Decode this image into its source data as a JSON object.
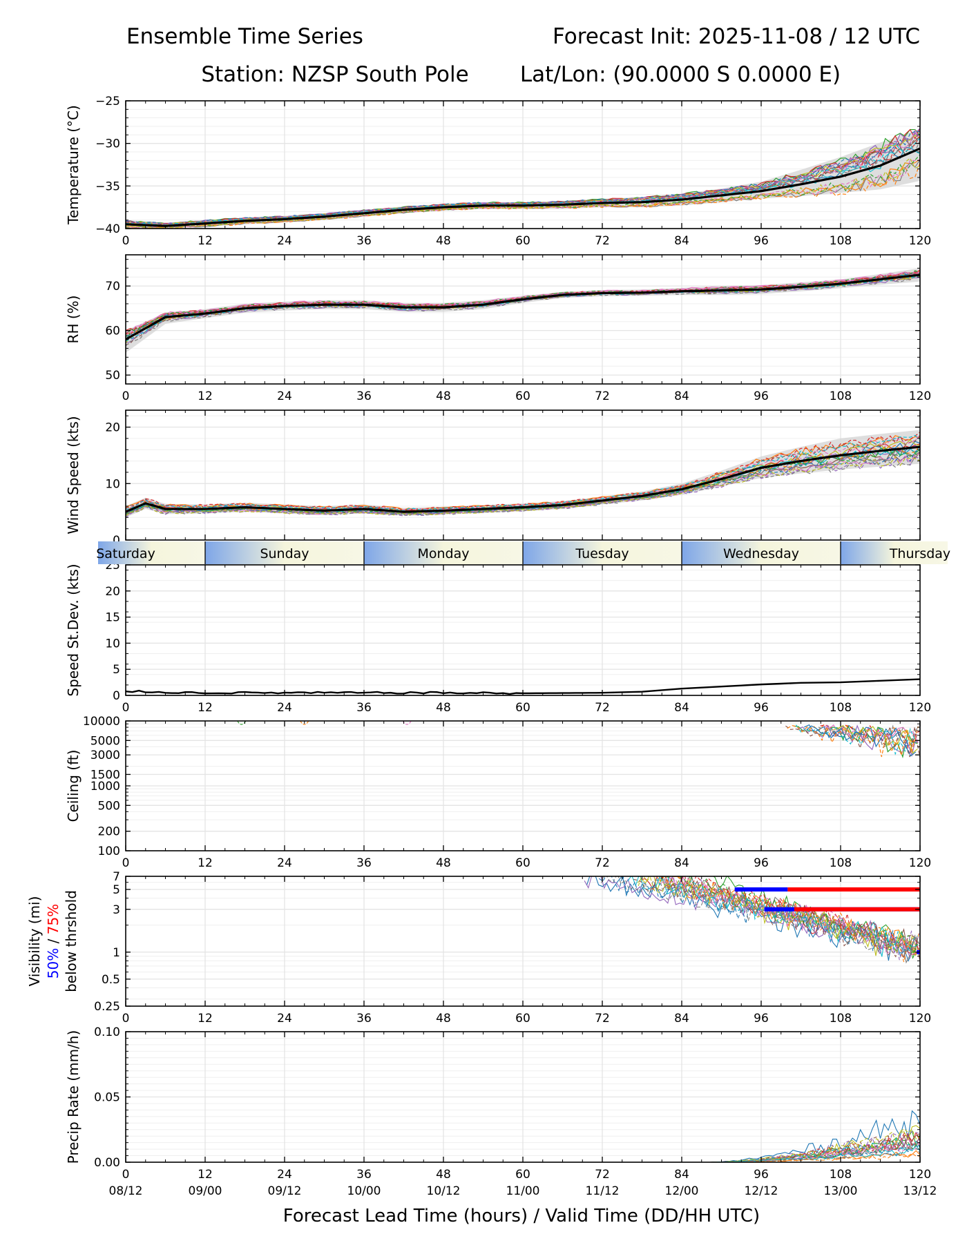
{
  "header": {
    "title_left": "Ensemble Time Series",
    "title_right": "Forecast Init: 2025-11-08 / 12 UTC",
    "station": "Station: NZSP South Pole",
    "latlon": "Lat/Lon: (90.0000 S 0.0000 E)"
  },
  "x_axis": {
    "label": "Forecast Lead Time (hours) / Valid Time (DD/HH UTC)",
    "range": [
      0,
      120
    ],
    "ticks": [
      0,
      12,
      24,
      36,
      48,
      60,
      72,
      84,
      96,
      108,
      120
    ],
    "tick_labels": [
      "0",
      "12",
      "24",
      "36",
      "48",
      "60",
      "72",
      "84",
      "96",
      "108",
      "120"
    ],
    "valid_labels": [
      "08/12",
      "09/00",
      "09/12",
      "10/00",
      "10/12",
      "11/00",
      "11/12",
      "12/00",
      "12/12",
      "13/00",
      "13/12"
    ]
  },
  "day_band": {
    "labels": [
      "Saturday",
      "Sunday",
      "Monday",
      "Tuesday",
      "Wednesday",
      "Thursday"
    ],
    "boundaries_hours": [
      12,
      36,
      60,
      84,
      108
    ]
  },
  "visibility_label": {
    "line1": "Visibility (mi)",
    "pct50": "50%",
    "sep": " / ",
    "pct75": "75%",
    "line3": "below thrshold"
  },
  "colors": {
    "mean": "#000000",
    "spread": "#d3d3d3",
    "grid": "#e4e4e4",
    "band_blue": "#7ea6e8",
    "band_cream": "#f5f5dc",
    "p50": "#0000ff",
    "p75": "#ff0000",
    "members": [
      "#1f77b4",
      "#ff7f0e",
      "#2ca02c",
      "#d62728",
      "#9467bd",
      "#8c564b",
      "#e377c2",
      "#7f7f7f",
      "#bcbd22",
      "#17becf"
    ]
  },
  "chart_data": [
    {
      "type": "line",
      "name": "temperature",
      "title": "",
      "xlabel": "",
      "ylabel": "Temperature (°C)",
      "ylim": [
        -40,
        -25
      ],
      "yticks": [
        -40,
        -35,
        -30,
        -25
      ],
      "ytick_labels": [
        "−40",
        "−35",
        "−30",
        "−25"
      ],
      "members": 20,
      "mean": {
        "x": [
          0,
          6,
          12,
          18,
          24,
          30,
          36,
          42,
          48,
          54,
          60,
          66,
          72,
          78,
          84,
          90,
          96,
          102,
          108,
          114,
          120
        ],
        "y": [
          -39.5,
          -39.7,
          -39.4,
          -39.1,
          -38.9,
          -38.6,
          -38.2,
          -37.8,
          -37.5,
          -37.3,
          -37.3,
          -37.2,
          -37.0,
          -36.9,
          -36.6,
          -36.1,
          -35.6,
          -34.8,
          -33.9,
          -32.6,
          -30.6
        ]
      },
      "spread_lo": [
        -40.0,
        -40.0,
        -39.8,
        -39.5,
        -39.3,
        -39.0,
        -38.6,
        -38.2,
        -37.9,
        -37.7,
        -37.7,
        -37.7,
        -37.5,
        -37.5,
        -37.3,
        -36.9,
        -36.5,
        -36.2,
        -35.8,
        -35.4,
        -34.4
      ],
      "spread_hi": [
        -39.0,
        -39.3,
        -39.0,
        -38.7,
        -38.5,
        -38.2,
        -37.8,
        -37.4,
        -37.1,
        -36.9,
        -36.9,
        -36.8,
        -36.5,
        -36.3,
        -35.9,
        -35.3,
        -34.5,
        -33.1,
        -31.6,
        -29.9,
        -28.3
      ]
    },
    {
      "type": "line",
      "name": "relative_humidity",
      "ylabel": "RH (%)",
      "ylim": [
        48,
        77
      ],
      "yticks": [
        50,
        60,
        70
      ],
      "ytick_labels": [
        "50",
        "60",
        "70"
      ],
      "members": 20,
      "mean": {
        "x": [
          0,
          6,
          12,
          18,
          24,
          30,
          36,
          42,
          48,
          54,
          60,
          66,
          72,
          78,
          84,
          90,
          96,
          102,
          108,
          114,
          120
        ],
        "y": [
          58.0,
          63.0,
          63.8,
          65.0,
          65.5,
          65.8,
          65.8,
          65.2,
          65.2,
          65.8,
          67.0,
          68.0,
          68.4,
          68.5,
          68.8,
          69.0,
          69.2,
          69.8,
          70.5,
          71.5,
          72.5
        ]
      },
      "spread_lo": [
        55.0,
        61.5,
        62.8,
        64.0,
        64.5,
        64.8,
        64.8,
        64.2,
        64.2,
        64.8,
        66.2,
        67.3,
        67.7,
        67.8,
        68.0,
        68.0,
        68.2,
        68.8,
        69.5,
        70.3,
        71.0
      ],
      "spread_hi": [
        60.0,
        64.0,
        64.8,
        66.0,
        66.5,
        66.8,
        66.8,
        66.2,
        66.2,
        66.8,
        67.8,
        68.7,
        69.1,
        69.2,
        69.6,
        70.0,
        70.2,
        70.8,
        71.5,
        72.7,
        74.0
      ]
    },
    {
      "type": "line",
      "name": "wind_speed",
      "ylabel": "Wind Speed (kts)",
      "ylim": [
        0,
        23
      ],
      "yticks": [
        0,
        10,
        20
      ],
      "ytick_labels": [
        "0",
        "10",
        "20"
      ],
      "members": 20,
      "mean": {
        "x": [
          0,
          3,
          6,
          12,
          18,
          24,
          30,
          36,
          42,
          48,
          54,
          60,
          66,
          72,
          78,
          84,
          90,
          96,
          102,
          108,
          114,
          120
        ],
        "y": [
          5.0,
          6.5,
          5.5,
          5.5,
          5.8,
          5.5,
          5.2,
          5.5,
          5.0,
          5.2,
          5.5,
          5.8,
          6.2,
          7.0,
          7.8,
          9.0,
          10.8,
          12.8,
          14.0,
          15.0,
          15.8,
          16.5
        ]
      },
      "spread_lo": [
        4.0,
        5.5,
        4.6,
        4.7,
        5.0,
        4.7,
        4.4,
        4.7,
        4.3,
        4.5,
        4.8,
        5.1,
        5.5,
        6.3,
        7.0,
        8.0,
        9.5,
        11.0,
        11.8,
        12.5,
        13.0,
        13.5
      ],
      "spread_hi": [
        6.0,
        7.5,
        6.4,
        6.3,
        6.6,
        6.3,
        6.0,
        6.3,
        5.7,
        5.9,
        6.2,
        6.5,
        6.9,
        7.7,
        8.6,
        10.0,
        12.3,
        14.8,
        16.5,
        18.0,
        18.8,
        19.5
      ]
    },
    {
      "type": "line",
      "name": "speed_stdev",
      "ylabel": "Speed St.Dev. (kts)",
      "ylim": [
        0,
        25
      ],
      "yticks": [
        0,
        5,
        10,
        15,
        20,
        25
      ],
      "ytick_labels": [
        "0",
        "5",
        "10",
        "15",
        "20",
        "25"
      ],
      "series": [
        {
          "name": "st.dev",
          "x": [
            0,
            6,
            12,
            24,
            36,
            48,
            60,
            72,
            78,
            84,
            90,
            96,
            102,
            108,
            114,
            120
          ],
          "values": [
            0.8,
            0.6,
            0.5,
            0.5,
            0.5,
            0.5,
            0.4,
            0.5,
            0.7,
            1.3,
            1.7,
            2.1,
            2.4,
            2.5,
            2.8,
            3.1
          ]
        }
      ]
    },
    {
      "type": "line",
      "name": "ceiling",
      "ylabel": "Ceiling (ft)",
      "yscale": "log",
      "ylim": [
        100,
        10000
      ],
      "yticks": [
        100,
        200,
        500,
        1000,
        1500,
        3000,
        5000,
        10000
      ],
      "ytick_labels": [
        "100",
        "200",
        "500",
        "1000",
        "1500",
        "3000",
        "5000",
        "10000"
      ],
      "members": 20
    },
    {
      "type": "line",
      "name": "visibility",
      "ylabel": "Visibility (mi)",
      "yscale": "log",
      "ylim": [
        0.25,
        7
      ],
      "yticks": [
        0.25,
        0.5,
        1,
        3,
        5,
        7
      ],
      "ytick_labels": [
        "0.25",
        "0.5",
        "1",
        "3",
        "5",
        "7"
      ],
      "members": 20,
      "thresholds": [
        {
          "level": 5,
          "p50_hours": [
            92,
            100
          ],
          "p75_hours": [
            100,
            120
          ]
        },
        {
          "level": 3,
          "p50_hours": [
            96.5,
            120
          ],
          "p75_hours": [
            101,
            120
          ]
        },
        {
          "level": 1,
          "p50_hours": [
            119.5,
            120
          ],
          "p75_hours": []
        }
      ]
    },
    {
      "type": "line",
      "name": "precip_rate",
      "ylabel": "Precip Rate (mm/h)",
      "ylim": [
        0,
        0.1
      ],
      "yticks": [
        0,
        0.05,
        0.1
      ],
      "ytick_labels": [
        "0.00",
        "0.05",
        "0.10"
      ],
      "members": 20
    }
  ]
}
